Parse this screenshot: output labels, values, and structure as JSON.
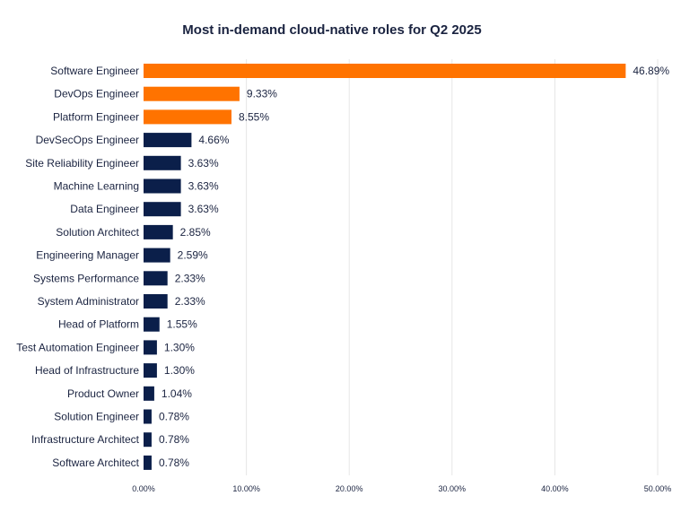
{
  "chart_data": {
    "type": "bar",
    "orientation": "horizontal",
    "title": "Most in-demand cloud-native roles for Q2 2025",
    "xlabel": "",
    "ylabel": "",
    "xlim": [
      0,
      50
    ],
    "grid": true,
    "legend": "none",
    "x_ticks": [
      "0.00%",
      "10.00%",
      "20.00%",
      "30.00%",
      "40.00%",
      "50.00%"
    ],
    "x_tick_values": [
      0,
      10,
      20,
      30,
      40,
      50
    ],
    "categories": [
      "Software Engineer",
      "DevOps Engineer",
      "Platform Engineer",
      "DevSecOps Engineer",
      "Site Reliability Engineer",
      "Machine Learning",
      "Data Engineer",
      "Solution Architect",
      "Engineering Manager",
      "Systems Performance",
      "System Administrator",
      "Head of Platform",
      "Test Automation Engineer",
      "Head of Infrastructure",
      "Product Owner",
      "Solution Engineer",
      "Infrastructure Architect",
      "Software Architect"
    ],
    "values": [
      46.89,
      9.33,
      8.55,
      4.66,
      3.63,
      3.63,
      3.63,
      2.85,
      2.59,
      2.33,
      2.33,
      1.55,
      1.3,
      1.3,
      1.04,
      0.78,
      0.78,
      0.78
    ],
    "value_labels": [
      "46.89%",
      "9.33%",
      "8.55%",
      "4.66%",
      "3.63%",
      "3.63%",
      "3.63%",
      "2.85%",
      "2.59%",
      "2.33%",
      "2.33%",
      "1.55%",
      "1.30%",
      "1.30%",
      "1.04%",
      "0.78%",
      "0.78%",
      "0.78%"
    ],
    "highlight_count": 3,
    "colors": {
      "highlight": "#ff7300",
      "default": "#0b1f4a",
      "text": "#1a2340",
      "grid": "#e6e6e6"
    }
  }
}
